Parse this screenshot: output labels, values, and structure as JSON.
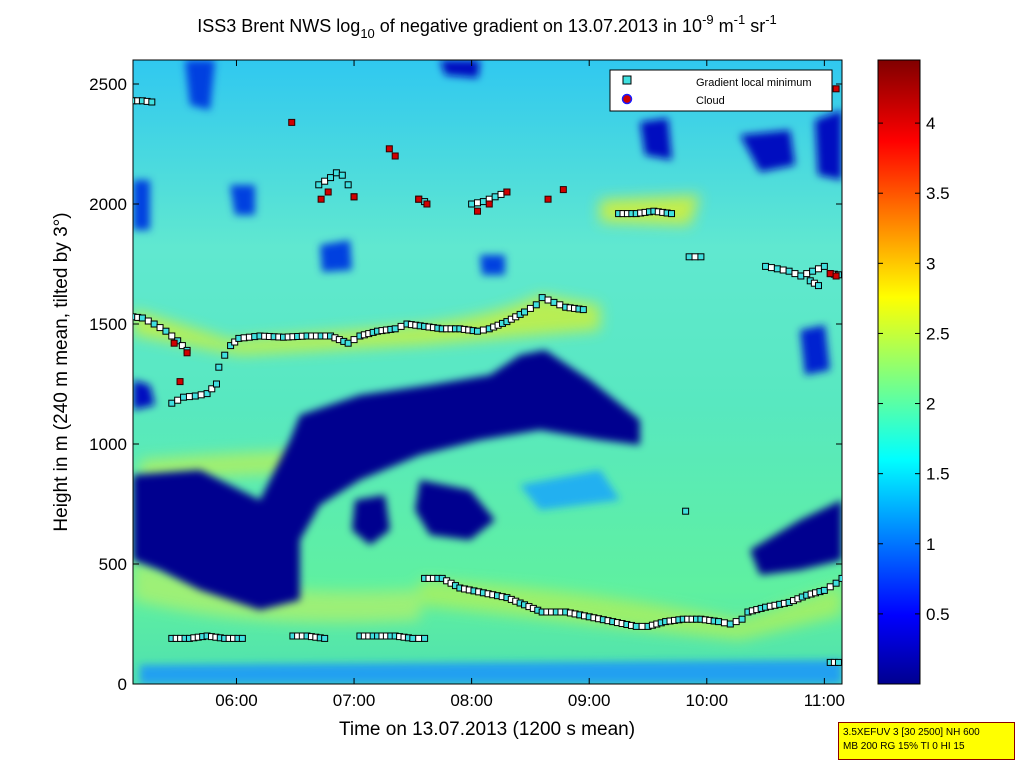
{
  "chart_data": {
    "type": "heatmap",
    "title": {
      "main": "ISS3 Brent NWS log",
      "log_sub": "10",
      "mid": " of negative gradient on 13.07.2013 in 10",
      "exp1": "-9",
      "unit1": " m",
      "exp2": "-1",
      "unit2": " sr",
      "exp3": "-1"
    },
    "xlabel": "Time on 13.07.2013 (1200 s mean)",
    "ylabel": "Height in m (240 m mean, tilted by 3°)",
    "xlim": [
      5.12,
      11.15
    ],
    "ylim": [
      0,
      2600
    ],
    "x_ticks": [
      6,
      7,
      8,
      9,
      10,
      11
    ],
    "x_tick_labels": [
      "06:00",
      "07:00",
      "08:00",
      "09:00",
      "10:00",
      "11:00"
    ],
    "y_ticks": [
      0,
      500,
      1000,
      1500,
      2000,
      2500
    ],
    "y_tick_labels": [
      "0",
      "500",
      "1000",
      "1500",
      "2000",
      "2500"
    ],
    "colorbar": {
      "range": [
        0,
        4.45
      ],
      "ticks": [
        0.5,
        1,
        1.5,
        2,
        2.5,
        3,
        3.5,
        4
      ],
      "tick_labels": [
        "0.5",
        "1",
        "1.5",
        "2",
        "2.5",
        "3",
        "3.5",
        "4"
      ],
      "colormap": "jet"
    },
    "legend": {
      "position": "top-right",
      "entries": [
        {
          "label": "Gradient local minimum",
          "color": "#40e0e0",
          "marker": "square"
        },
        {
          "label": "Cloud",
          "color": "#d00000",
          "marker": "circle"
        }
      ]
    },
    "series": [
      {
        "name": "Gradient local minimum",
        "segments": [
          [
            [
              5.12,
              2430
            ],
            [
              5.2,
              2430
            ],
            [
              5.28,
              2425
            ]
          ],
          [
            [
              5.12,
              1530
            ],
            [
              5.2,
              1525
            ],
            [
              5.3,
              1500
            ],
            [
              5.4,
              1470
            ],
            [
              5.5,
              1430
            ],
            [
              5.58,
              1390
            ]
          ],
          [
            [
              5.45,
              1170
            ],
            [
              5.55,
              1195
            ],
            [
              5.65,
              1200
            ],
            [
              5.75,
              1210
            ],
            [
              5.83,
              1250
            ]
          ],
          [
            [
              5.85,
              1320
            ],
            [
              5.9,
              1370
            ],
            [
              5.95,
              1410
            ],
            [
              6.02,
              1440
            ],
            [
              6.2,
              1450
            ],
            [
              6.4,
              1445
            ],
            [
              6.6,
              1450
            ],
            [
              6.8,
              1450
            ],
            [
              6.95,
              1420
            ],
            [
              7.05,
              1450
            ],
            [
              7.2,
              1470
            ],
            [
              7.35,
              1480
            ],
            [
              7.45,
              1500
            ],
            [
              7.6,
              1490
            ],
            [
              7.75,
              1480
            ],
            [
              7.9,
              1480
            ],
            [
              8.05,
              1470
            ],
            [
              8.15,
              1480
            ],
            [
              8.3,
              1510
            ],
            [
              8.45,
              1550
            ],
            [
              8.55,
              1580
            ],
            [
              8.6,
              1610
            ],
            [
              8.7,
              1590
            ],
            [
              8.8,
              1570
            ],
            [
              8.95,
              1560
            ]
          ],
          [
            [
              6.7,
              2080
            ],
            [
              6.8,
              2110
            ],
            [
              6.85,
              2130
            ],
            [
              6.9,
              2120
            ],
            [
              6.95,
              2080
            ],
            [
              7.0,
              2030
            ]
          ],
          [
            [
              7.55,
              2020
            ],
            [
              7.6,
              2010
            ]
          ],
          [
            [
              8.0,
              2000
            ],
            [
              8.1,
              2010
            ],
            [
              8.2,
              2030
            ],
            [
              8.3,
              2050
            ]
          ],
          [
            [
              9.25,
              1960
            ],
            [
              9.4,
              1960
            ],
            [
              9.55,
              1970
            ],
            [
              9.7,
              1960
            ]
          ],
          [
            [
              9.85,
              1780
            ],
            [
              9.95,
              1780
            ]
          ],
          [
            [
              10.5,
              1740
            ],
            [
              10.6,
              1730
            ],
            [
              10.7,
              1720
            ],
            [
              10.8,
              1700
            ],
            [
              10.9,
              1720
            ],
            [
              11.0,
              1740
            ],
            [
              11.05,
              1710
            ],
            [
              11.12,
              1705
            ]
          ],
          [
            [
              10.88,
              1680
            ],
            [
              10.95,
              1660
            ]
          ],
          [
            [
              9.82,
              720
            ]
          ],
          [
            [
              7.6,
              440
            ],
            [
              7.75,
              440
            ],
            [
              7.9,
              400
            ],
            [
              8.1,
              380
            ],
            [
              8.3,
              360
            ],
            [
              8.45,
              330
            ],
            [
              8.6,
              300
            ],
            [
              8.8,
              300
            ],
            [
              9.0,
              280
            ],
            [
              9.2,
              260
            ],
            [
              9.4,
              240
            ],
            [
              9.5,
              240
            ],
            [
              9.65,
              260
            ],
            [
              9.8,
              270
            ],
            [
              9.95,
              270
            ],
            [
              10.1,
              260
            ],
            [
              10.2,
              250
            ],
            [
              10.3,
              270
            ],
            [
              10.35,
              300
            ],
            [
              10.5,
              320
            ],
            [
              10.7,
              340
            ],
            [
              10.85,
              370
            ],
            [
              11.0,
              390
            ],
            [
              11.1,
              420
            ],
            [
              11.15,
              440
            ]
          ],
          [
            [
              5.45,
              190
            ],
            [
              5.6,
              190
            ],
            [
              5.75,
              200
            ],
            [
              5.9,
              190
            ],
            [
              6.05,
              190
            ]
          ],
          [
            [
              6.48,
              200
            ],
            [
              6.6,
              200
            ],
            [
              6.75,
              190
            ]
          ],
          [
            [
              7.05,
              200
            ],
            [
              7.2,
              200
            ],
            [
              7.35,
              200
            ],
            [
              7.5,
              190
            ],
            [
              7.6,
              190
            ]
          ],
          [
            [
              11.05,
              90
            ],
            [
              11.12,
              90
            ]
          ]
        ]
      },
      {
        "name": "Cloud",
        "points": [
          [
            5.58,
            1380
          ],
          [
            5.47,
            1420
          ],
          [
            5.52,
            1260
          ],
          [
            6.47,
            2340
          ],
          [
            6.72,
            2020
          ],
          [
            6.78,
            2050
          ],
          [
            7.0,
            2030
          ],
          [
            7.3,
            2230
          ],
          [
            7.35,
            2200
          ],
          [
            7.55,
            2020
          ],
          [
            7.62,
            2000
          ],
          [
            8.05,
            1970
          ],
          [
            8.15,
            2000
          ],
          [
            8.3,
            2050
          ],
          [
            8.78,
            2060
          ],
          [
            8.65,
            2020
          ],
          [
            11.1,
            2480
          ],
          [
            11.05,
            1710
          ],
          [
            11.1,
            1700
          ]
        ]
      }
    ],
    "field_note_levels": {
      "blue_regions": "value < 1",
      "background": "value ≈ 1.6–2.0",
      "ridges": "value ≈ 2.4–2.8"
    }
  },
  "settings_box": {
    "line1": "3.5XEFUV 3 [30 2500] NH 600",
    "line2": "MB 200 RG 15% TI 0 HI 15"
  },
  "colors": {
    "frame": "#000000",
    "settings_bg": "#ffff00",
    "settings_border": "#8b0000"
  }
}
